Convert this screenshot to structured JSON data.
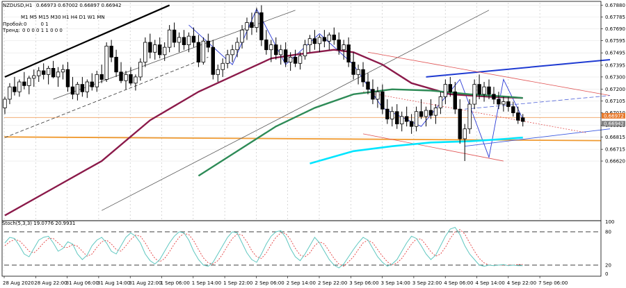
{
  "chart_data": {
    "type": "candlestick",
    "header": {
      "symbol": "NZDUSD,H1",
      "ohlc": "0.66973 0.67002 0.66897 0.66942",
      "timeframes": "M1 M5 M15 M30 H1 H4 D1 W1 MN",
      "row1_label": "Пробой:",
      "row1_values": "0         0 1",
      "row2_label": "Тренд:",
      "row2_values": "0 0 0 0 1 1 0 0 0"
    },
    "y_axis": {
      "ylim": [
        0.6616,
        0.679
      ],
      "ticks": [
        "0.67880",
        "0.67785",
        "0.67690",
        "0.67595",
        "0.67495",
        "0.67395",
        "0.67300",
        "0.67200",
        "0.67105",
        "0.67010",
        "0.66910",
        "0.66815",
        "0.66715",
        "0.66620"
      ],
      "price_tags": [
        {
          "text": "0.66972",
          "value": 0.66972,
          "color": "#e8792b"
        },
        {
          "text": "0.66942",
          "value": 0.66942,
          "color": "#808080"
        }
      ]
    },
    "x_axis": {
      "ticks": [
        "28 Aug 2020",
        "28 Aug 22:00",
        "31 Aug 06:00",
        "31 Aug 14:00",
        "31 Aug 22:00",
        "1 Sep 06:00",
        "1 Sep 14:00",
        "1 Sep 22:00",
        "2 Sep 06:00",
        "2 Sep 14:00",
        "2 Sep 22:00",
        "3 Sep 06:00",
        "3 Sep 14:00",
        "3 Sep 22:00",
        "4 Sep 06:00",
        "4 Sep 14:00",
        "4 Sep 22:00",
        "7 Sep 06:00"
      ]
    },
    "candles": [
      [
        0.6705,
        0.6714,
        0.67,
        0.6712
      ],
      [
        0.6712,
        0.6725,
        0.6708,
        0.6722
      ],
      [
        0.6722,
        0.673,
        0.6715,
        0.6718
      ],
      [
        0.6718,
        0.6728,
        0.6714,
        0.6726
      ],
      [
        0.6726,
        0.6734,
        0.672,
        0.6723
      ],
      [
        0.6723,
        0.6731,
        0.6716,
        0.6729
      ],
      [
        0.6729,
        0.6736,
        0.6722,
        0.6731
      ],
      [
        0.6731,
        0.6738,
        0.6726,
        0.6735
      ],
      [
        0.6735,
        0.6741,
        0.6728,
        0.6732
      ],
      [
        0.6732,
        0.6739,
        0.6724,
        0.6737
      ],
      [
        0.6737,
        0.6743,
        0.6729,
        0.673
      ],
      [
        0.673,
        0.6738,
        0.6722,
        0.6734
      ],
      [
        0.6734,
        0.674,
        0.6728,
        0.6736
      ],
      [
        0.6736,
        0.6742,
        0.6718,
        0.6722
      ],
      [
        0.6722,
        0.673,
        0.6712,
        0.6716
      ],
      [
        0.6716,
        0.6726,
        0.6711,
        0.6724
      ],
      [
        0.6724,
        0.673,
        0.6714,
        0.6718
      ],
      [
        0.6718,
        0.6728,
        0.6713,
        0.6726
      ],
      [
        0.6726,
        0.6733,
        0.6719,
        0.6722
      ],
      [
        0.6722,
        0.6735,
        0.6718,
        0.6732
      ],
      [
        0.6732,
        0.674,
        0.6725,
        0.6728
      ],
      [
        0.6728,
        0.6758,
        0.6726,
        0.6755
      ],
      [
        0.6755,
        0.676,
        0.6742,
        0.6746
      ],
      [
        0.6746,
        0.6752,
        0.673,
        0.6734
      ],
      [
        0.6734,
        0.6742,
        0.6725,
        0.6727
      ],
      [
        0.6727,
        0.6735,
        0.672,
        0.6732
      ],
      [
        0.6732,
        0.6738,
        0.6723,
        0.6725
      ],
      [
        0.6725,
        0.6732,
        0.6719,
        0.673
      ],
      [
        0.673,
        0.6745,
        0.6727,
        0.6742
      ],
      [
        0.6742,
        0.6762,
        0.6738,
        0.6758
      ],
      [
        0.6758,
        0.6765,
        0.6745,
        0.675
      ],
      [
        0.675,
        0.676,
        0.6744,
        0.6756
      ],
      [
        0.6756,
        0.6762,
        0.6745,
        0.6748
      ],
      [
        0.6748,
        0.6758,
        0.6743,
        0.6754
      ],
      [
        0.6754,
        0.6772,
        0.675,
        0.6768
      ],
      [
        0.6768,
        0.6774,
        0.6754,
        0.6758
      ],
      [
        0.6758,
        0.6766,
        0.675,
        0.6762
      ],
      [
        0.6762,
        0.6768,
        0.6752,
        0.6756
      ],
      [
        0.6756,
        0.6766,
        0.675,
        0.6763
      ],
      [
        0.6763,
        0.677,
        0.6754,
        0.6758
      ],
      [
        0.6758,
        0.6764,
        0.6738,
        0.6742
      ],
      [
        0.6742,
        0.6762,
        0.674,
        0.6759
      ],
      [
        0.6759,
        0.6765,
        0.675,
        0.6754
      ],
      [
        0.6754,
        0.676,
        0.6728,
        0.6732
      ],
      [
        0.6732,
        0.674,
        0.6726,
        0.6736
      ],
      [
        0.6736,
        0.6745,
        0.673,
        0.6741
      ],
      [
        0.6741,
        0.6752,
        0.6737,
        0.6748
      ],
      [
        0.6748,
        0.6756,
        0.6742,
        0.6752
      ],
      [
        0.6752,
        0.6762,
        0.6746,
        0.6758
      ],
      [
        0.6758,
        0.6772,
        0.6753,
        0.6768
      ],
      [
        0.6768,
        0.6778,
        0.676,
        0.6774
      ],
      [
        0.6774,
        0.6782,
        0.6764,
        0.677
      ],
      [
        0.677,
        0.6786,
        0.6766,
        0.6782
      ],
      [
        0.6782,
        0.6788,
        0.6755,
        0.676
      ],
      [
        0.676,
        0.6768,
        0.6748,
        0.6752
      ],
      [
        0.6752,
        0.676,
        0.6742,
        0.6756
      ],
      [
        0.6756,
        0.6762,
        0.6744,
        0.6748
      ],
      [
        0.6748,
        0.6756,
        0.674,
        0.6752
      ],
      [
        0.6752,
        0.6758,
        0.6738,
        0.6742
      ],
      [
        0.6742,
        0.675,
        0.6735,
        0.6746
      ],
      [
        0.6746,
        0.6752,
        0.6738,
        0.6741
      ],
      [
        0.6741,
        0.675,
        0.6736,
        0.6747
      ],
      [
        0.6747,
        0.676,
        0.6744,
        0.6756
      ],
      [
        0.6756,
        0.6764,
        0.675,
        0.6761
      ],
      [
        0.6761,
        0.6768,
        0.6752,
        0.6757
      ],
      [
        0.6757,
        0.6764,
        0.675,
        0.6762
      ],
      [
        0.6762,
        0.6768,
        0.6754,
        0.6759
      ],
      [
        0.6759,
        0.6766,
        0.6752,
        0.6764
      ],
      [
        0.6764,
        0.677,
        0.6756,
        0.676
      ],
      [
        0.676,
        0.6766,
        0.6748,
        0.6752
      ],
      [
        0.6752,
        0.676,
        0.6744,
        0.6756
      ],
      [
        0.6756,
        0.6762,
        0.6738,
        0.6742
      ],
      [
        0.6742,
        0.675,
        0.6728,
        0.6732
      ],
      [
        0.6732,
        0.674,
        0.6724,
        0.6736
      ],
      [
        0.6736,
        0.6742,
        0.6722,
        0.6726
      ],
      [
        0.6726,
        0.6733,
        0.6716,
        0.672
      ],
      [
        0.672,
        0.6728,
        0.6708,
        0.6712
      ],
      [
        0.6712,
        0.6722,
        0.6705,
        0.6718
      ],
      [
        0.6718,
        0.6724,
        0.67,
        0.6704
      ],
      [
        0.6704,
        0.6712,
        0.6692,
        0.6696
      ],
      [
        0.6696,
        0.6706,
        0.669,
        0.6702
      ],
      [
        0.6702,
        0.6708,
        0.6688,
        0.6692
      ],
      [
        0.6692,
        0.6702,
        0.6686,
        0.6698
      ],
      [
        0.6698,
        0.6706,
        0.669,
        0.6694
      ],
      [
        0.6694,
        0.67,
        0.6684,
        0.669
      ],
      [
        0.669,
        0.6706,
        0.6686,
        0.6702
      ],
      [
        0.6702,
        0.6712,
        0.6696,
        0.6698
      ],
      [
        0.6698,
        0.6706,
        0.669,
        0.6703
      ],
      [
        0.6703,
        0.6712,
        0.6696,
        0.6699
      ],
      [
        0.6699,
        0.6708,
        0.6692,
        0.6705
      ],
      [
        0.6705,
        0.6718,
        0.67,
        0.6714
      ],
      [
        0.6714,
        0.6728,
        0.6708,
        0.6724
      ],
      [
        0.6724,
        0.673,
        0.6714,
        0.6718
      ],
      [
        0.6718,
        0.6726,
        0.67,
        0.6704
      ],
      [
        0.6704,
        0.6712,
        0.6676,
        0.668
      ],
      [
        0.668,
        0.6692,
        0.6662,
        0.6688
      ],
      [
        0.6688,
        0.6712,
        0.6684,
        0.6708
      ],
      [
        0.6708,
        0.6728,
        0.6704,
        0.6724
      ],
      [
        0.6724,
        0.6732,
        0.6712,
        0.6716
      ],
      [
        0.6716,
        0.6726,
        0.671,
        0.6722
      ],
      [
        0.6722,
        0.6728,
        0.6712,
        0.6716
      ],
      [
        0.6716,
        0.6722,
        0.6708,
        0.6712
      ],
      [
        0.6712,
        0.6718,
        0.6704,
        0.6708
      ],
      [
        0.6708,
        0.6714,
        0.6702,
        0.671
      ],
      [
        0.671,
        0.6714,
        0.6702,
        0.6706
      ],
      [
        0.6706,
        0.671,
        0.6698,
        0.6701
      ],
      [
        0.6701,
        0.6706,
        0.6692,
        0.6695
      ],
      [
        0.6697,
        0.67,
        0.669,
        0.6694
      ]
    ],
    "indicators": {
      "ma_maroon": {
        "color": "#8b1a4a",
        "values": [
          [
            0,
            0.6618
          ],
          [
            10,
            0.664
          ],
          [
            20,
            0.6662
          ],
          [
            30,
            0.6695
          ],
          [
            40,
            0.6718
          ],
          [
            50,
            0.6736
          ],
          [
            55,
            0.6745
          ],
          [
            60,
            0.6748
          ],
          [
            68,
            0.6752
          ],
          [
            72,
            0.675
          ],
          [
            78,
            0.674
          ],
          [
            84,
            0.6725
          ],
          [
            92,
            0.6716
          ],
          [
            100,
            0.6714
          ],
          [
            107,
            0.6713
          ]
        ]
      },
      "ma_green": {
        "color": "#2e8b57",
        "values": [
          [
            40,
            0.665
          ],
          [
            48,
            0.667
          ],
          [
            56,
            0.669
          ],
          [
            64,
            0.6705
          ],
          [
            72,
            0.6716
          ],
          [
            80,
            0.672
          ],
          [
            88,
            0.6719
          ],
          [
            96,
            0.6716
          ],
          [
            104,
            0.6714
          ],
          [
            107,
            0.6713
          ]
        ]
      },
      "ma_cyan": {
        "color": "#00e5ff",
        "values": [
          [
            63,
            0.666
          ],
          [
            72,
            0.667
          ],
          [
            80,
            0.6674
          ],
          [
            88,
            0.6677
          ],
          [
            96,
            0.6678
          ],
          [
            104,
            0.668
          ],
          [
            107,
            0.6681
          ]
        ]
      }
    },
    "stochastic": {
      "label": "Stoch(5,3,3) 19.0776 20.9931",
      "ticks": [
        "100",
        "80",
        "20",
        "0"
      ],
      "levels": [
        80,
        20
      ],
      "main": [
        60,
        70,
        68,
        55,
        40,
        35,
        50,
        65,
        70,
        72,
        60,
        45,
        50,
        62,
        58,
        40,
        30,
        38,
        55,
        65,
        70,
        60,
        45,
        40,
        55,
        70,
        78,
        72,
        60,
        40,
        28,
        22,
        30,
        45,
        60,
        72,
        80,
        78,
        65,
        45,
        30,
        20,
        18,
        25,
        40,
        55,
        70,
        80,
        78,
        60,
        42,
        30,
        25,
        40,
        58,
        72,
        80,
        82,
        70,
        50,
        35,
        28,
        40,
        55,
        70,
        60,
        45,
        30,
        20,
        15,
        22,
        35,
        48,
        60,
        70,
        65,
        50,
        35,
        25,
        18,
        22,
        30,
        45,
        60,
        72,
        68,
        55,
        40,
        30,
        38,
        55,
        72,
        85,
        88,
        75,
        55,
        40,
        30,
        20,
        18,
        20,
        19,
        20,
        21,
        19,
        20,
        19,
        19
      ],
      "signal": [
        55,
        62,
        66,
        64,
        55,
        45,
        42,
        50,
        60,
        68,
        68,
        60,
        52,
        52,
        57,
        54,
        45,
        36,
        40,
        52,
        62,
        65,
        58,
        48,
        45,
        55,
        66,
        74,
        72,
        60,
        45,
        32,
        26,
        32,
        44,
        58,
        70,
        77,
        75,
        64,
        48,
        33,
        24,
        22,
        28,
        40,
        55,
        68,
        76,
        74,
        62,
        46,
        35,
        32,
        42,
        57,
        70,
        78,
        77,
        66,
        50,
        38,
        35,
        42,
        55,
        62,
        58,
        45,
        32,
        22,
        18,
        26,
        35,
        48,
        60,
        65,
        60,
        48,
        36,
        26,
        20,
        24,
        32,
        45,
        58,
        67,
        67,
        56,
        44,
        36,
        40,
        52,
        68,
        80,
        84,
        76,
        60,
        45,
        32,
        24,
        20,
        19,
        20,
        20,
        20,
        20,
        21,
        21
      ]
    },
    "drawings": [
      {
        "name": "thick-black-trend",
        "color": "#000000",
        "width": 2.2,
        "dash": "",
        "p1": [
          0,
          0.673
        ],
        "p2": [
          34,
          0.6788
        ]
      },
      {
        "name": "channel-upper-black",
        "color": "#555555",
        "width": 0.8,
        "dash": "",
        "p1": [
          10,
          0.6712
        ],
        "p2": [
          60,
          0.6784
        ]
      },
      {
        "name": "channel-mid-dashed",
        "color": "#333333",
        "width": 0.8,
        "dash": "5,3",
        "p1": [
          0,
          0.6681
        ],
        "p2": [
          42,
          0.6746
        ]
      },
      {
        "name": "channel-lower-black",
        "color": "#555555",
        "width": 0.8,
        "dash": "",
        "p1": [
          20,
          0.6622
        ],
        "p2": [
          100,
          0.6784
        ]
      },
      {
        "name": "zigzag-blue",
        "color": "#2b3bd6",
        "width": 0.9,
        "dash": "",
        "points": [
          [
            38,
            0.6772
          ],
          [
            47,
            0.674
          ],
          [
            52,
            0.6785
          ],
          [
            58,
            0.674
          ],
          [
            65,
            0.6765
          ],
          [
            72,
            0.674
          ],
          [
            78,
            0.6705
          ],
          [
            86,
            0.669
          ],
          [
            94,
            0.6728
          ],
          [
            100,
            0.6665
          ],
          [
            103,
            0.6728
          ],
          [
            107,
            0.6696
          ]
        ]
      },
      {
        "name": "blue-resistance",
        "color": "#1e3ad2",
        "width": 2.0,
        "dash": "",
        "p1": [
          87,
          0.673
        ],
        "p2": [
          125,
          0.6744
        ]
      },
      {
        "name": "blue-support",
        "color": "#3a58e0",
        "width": 0.9,
        "dash": "",
        "p1": [
          95,
          0.6674
        ],
        "p2": [
          125,
          0.6688
        ]
      },
      {
        "name": "red-channel-upper",
        "color": "#e05050",
        "width": 0.8,
        "dash": "",
        "p1": [
          75,
          0.675
        ],
        "p2": [
          125,
          0.6715
        ]
      },
      {
        "name": "red-channel-lower",
        "color": "#e05050",
        "width": 0.8,
        "dash": "",
        "p1": [
          74,
          0.6684
        ],
        "p2": [
          103,
          0.6662
        ]
      },
      {
        "name": "red-dotted-mid",
        "color": "#e05050",
        "width": 0.8,
        "dash": "2,2",
        "p1": [
          74,
          0.6718
        ],
        "p2": [
          120,
          0.6685
        ]
      },
      {
        "name": "blue-dashed-mid",
        "color": "#4a5ed8",
        "width": 0.8,
        "dash": "6,3",
        "p1": [
          95,
          0.6704
        ],
        "p2": [
          125,
          0.6715
        ]
      }
    ],
    "levels": [
      {
        "name": "orange-level-high",
        "color": "#f0a060",
        "width": 0.9,
        "value": 0.66972
      },
      {
        "name": "orange-level-low",
        "color": "#f09a30",
        "width": 1.8,
        "value": 0.66815,
        "end": 0.66785
      }
    ]
  }
}
